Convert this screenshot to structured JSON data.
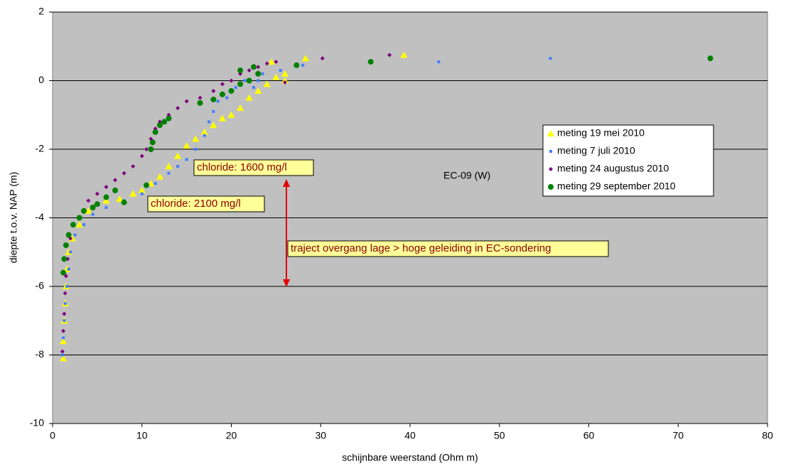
{
  "chart_data": {
    "type": "scatter",
    "xlabel": "schijnbare weerstand (Ohm m)",
    "ylabel": "diepte t.o.v. NAP (m)",
    "xlim": [
      0,
      80
    ],
    "xticks": [
      0,
      10,
      20,
      30,
      40,
      50,
      60,
      70,
      80
    ],
    "ylim": [
      -10,
      2
    ],
    "yticks": [
      -10,
      -8,
      -6,
      -4,
      -2,
      0,
      2
    ],
    "grid": true,
    "legend": "right",
    "annotations": [
      "EC-09 (W)",
      "chloride: 1600 mg/l",
      "chloride: 2100 mg/l",
      "traject overgang lage > hoge geleiding in EC-sondering"
    ],
    "series": [
      {
        "name": "meting 19 mei 2010",
        "color": "#ffff00",
        "marker": "triangle",
        "x": [
          1.2,
          1.2,
          1.3,
          1.4,
          1.5,
          1.6,
          1.8,
          2.2,
          3,
          4,
          6,
          7.5,
          9,
          10,
          11,
          12,
          13,
          14,
          15,
          16,
          17,
          18,
          19,
          20,
          21,
          22,
          23,
          24,
          25,
          26,
          24.5,
          26,
          28.3,
          39.3
        ],
        "y": [
          -8.1,
          -7.6,
          -7,
          -6.5,
          -6,
          -5.5,
          -5,
          -4.6,
          -4.2,
          -3.8,
          -3.5,
          -3.45,
          -3.3,
          -3.2,
          -3,
          -2.8,
          -2.5,
          -2.2,
          -1.9,
          -1.7,
          -1.5,
          -1.3,
          -1.1,
          -1,
          -0.8,
          -0.5,
          -0.3,
          -0.1,
          0.1,
          0,
          0.55,
          0.2,
          0.65,
          0.75
        ]
      },
      {
        "name": "meting 7 juli 2010",
        "color": "#3f7fff",
        "marker": "square",
        "x": [
          1.1,
          1.2,
          1.3,
          1.4,
          1.6,
          1.8,
          2,
          2.5,
          3.5,
          4.5,
          6,
          8,
          10,
          11.5,
          13,
          14,
          15,
          16,
          17,
          17.5,
          18,
          18.5,
          19.5,
          20.5,
          21.5,
          22.5,
          23,
          23.5,
          25.5,
          28,
          43.2,
          55.7
        ],
        "y": [
          -8,
          -7.5,
          -7,
          -6.5,
          -6,
          -5.5,
          -5,
          -4.5,
          -4.2,
          -3.9,
          -3.7,
          -3.5,
          -3.3,
          -3,
          -2.7,
          -2.5,
          -2.3,
          -2,
          -1.6,
          -1.2,
          -0.9,
          -0.6,
          -0.5,
          -0.2,
          0,
          -0.2,
          0,
          0.2,
          0.3,
          0.45,
          0.55,
          0.65
        ]
      },
      {
        "name": "meting 24 augustus 2010",
        "color": "#800080",
        "marker": "diamond",
        "x": [
          1.1,
          1.2,
          1.3,
          1.4,
          1.5,
          1.7,
          2,
          3,
          4,
          5,
          6,
          7,
          8,
          9,
          10,
          10.5,
          11,
          11.5,
          12,
          13,
          14,
          15,
          16.5,
          18,
          19,
          20,
          21,
          22,
          23,
          24,
          25,
          26,
          30.2,
          37.7
        ],
        "y": [
          -7.9,
          -7.3,
          -6.8,
          -6.2,
          -5.7,
          -5.2,
          -4.6,
          -4,
          -3.5,
          -3.3,
          -3.1,
          -2.9,
          -2.7,
          -2.5,
          -2.2,
          -2,
          -1.7,
          -1.4,
          -1.2,
          -1,
          -0.8,
          -0.6,
          -0.5,
          -0.3,
          -0.1,
          0,
          0.2,
          0.3,
          0.4,
          0.5,
          0.55,
          -0.05,
          0.65,
          0.75
        ]
      },
      {
        "name": "meting 29 september 2010",
        "color": "#008000",
        "marker": "circle",
        "x": [
          1.2,
          1.3,
          1.5,
          1.8,
          2.3,
          3,
          3.5,
          4.5,
          5,
          6,
          7,
          8,
          10.5,
          11,
          11.2,
          11.5,
          12,
          12.5,
          13,
          16.5,
          18,
          19,
          20,
          21,
          22,
          21,
          22.5,
          23,
          27.3,
          35.6,
          73.6
        ],
        "y": [
          -5.6,
          -5.2,
          -4.8,
          -4.5,
          -4.2,
          -4,
          -3.8,
          -3.7,
          -3.6,
          -3.4,
          -3.2,
          -3.55,
          -3.05,
          -2,
          -1.8,
          -1.5,
          -1.3,
          -1.2,
          -1.1,
          -0.65,
          -0.55,
          -0.4,
          -0.3,
          -0.1,
          0,
          0.3,
          0.4,
          0.2,
          0.45,
          0.55,
          0.65
        ]
      }
    ]
  }
}
